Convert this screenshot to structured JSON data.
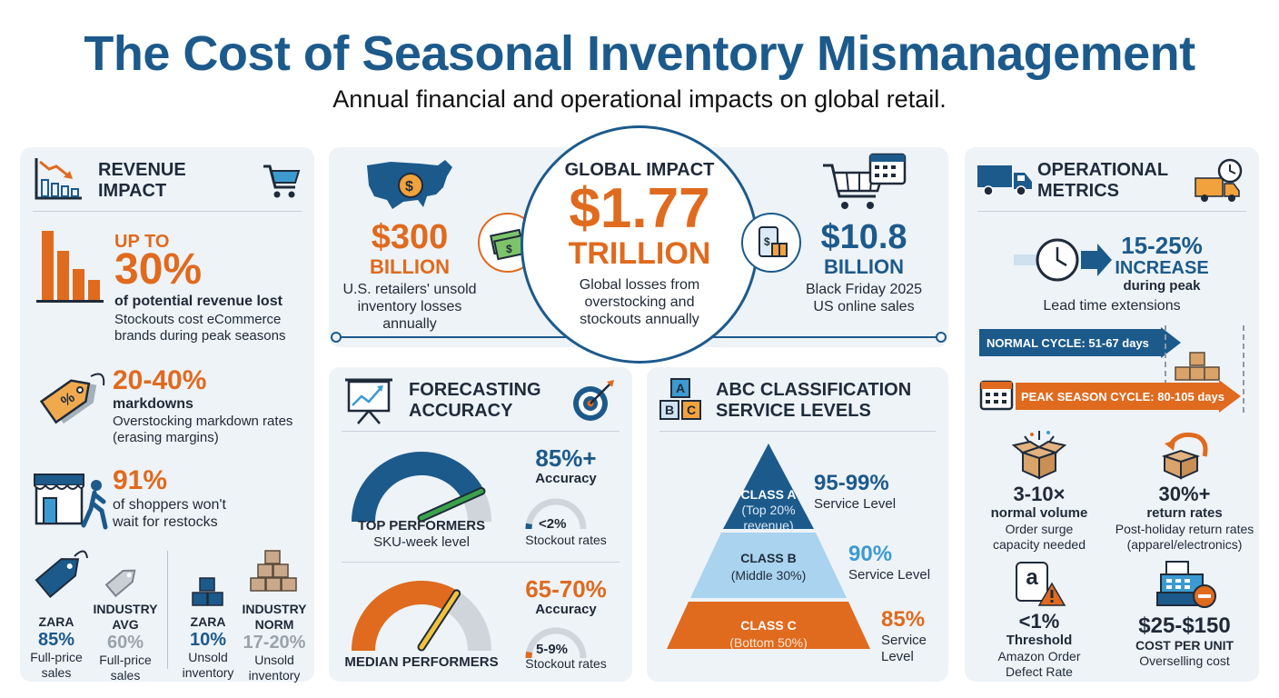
{
  "header": {
    "title": "The Cost of Seasonal Inventory Mismanagement",
    "subtitle": "Annual financial and operational impacts on global retail."
  },
  "revenue": {
    "heading_l1": "REVENUE",
    "heading_l2": "IMPACT",
    "stat1": {
      "pre": "UP TO",
      "value": "30%",
      "label": "of potential revenue lost",
      "desc_l1": "Stockouts cost eCommerce",
      "desc_l2": "brands during peak seasons"
    },
    "stat2": {
      "value": "20-40%",
      "label": "markdowns",
      "desc_l1": "Overstocking markdown rates",
      "desc_l2": "(erasing margins)"
    },
    "stat3": {
      "value": "91%",
      "desc_l1": "of shoppers won't",
      "desc_l2": "wait for restocks"
    },
    "compare": [
      {
        "name": "ZARA",
        "value": "85%",
        "desc_l1": "Full-price",
        "desc_l2": "sales"
      },
      {
        "name_l1": "INDUSTRY",
        "name_l2": "AVG",
        "value": "60%",
        "desc_l1": "Full-price",
        "desc_l2": "sales"
      },
      {
        "name": "ZARA",
        "value": "10%",
        "desc_l1": "Unsold",
        "desc_l2": "inventory"
      },
      {
        "name_l1": "INDUSTRY",
        "name_l2": "NORM",
        "value": "17-20%",
        "desc_l1": "Unsold",
        "desc_l2": "inventory"
      }
    ]
  },
  "global": {
    "us": {
      "value": "$300",
      "unit": "BILLION",
      "desc_l1": "U.S. retailers' unsold",
      "desc_l2": "inventory losses",
      "desc_l3": "annually"
    },
    "center": {
      "label": "GLOBAL IMPACT",
      "value": "$1.77",
      "unit": "TRILLION",
      "desc_l1": "Global losses from",
      "desc_l2": "overstocking and",
      "desc_l3": "stockouts annually"
    },
    "bf": {
      "value": "$10.8",
      "unit": "BILLION",
      "desc_l1": "Black Friday 2025",
      "desc_l2": "US online sales"
    }
  },
  "forecast": {
    "heading_l1": "FORECASTING",
    "heading_l2": "ACCURACY",
    "top": {
      "gauge_fraction": 0.85,
      "label": "TOP PERFORMERS",
      "sub": "SKU-week level",
      "accuracy_value": "85%+",
      "accuracy_label": "Accuracy",
      "stockout_value": "<2%",
      "stockout_label": "Stockout rates",
      "stockout_fraction": 0.02
    },
    "median": {
      "gauge_fraction": 0.675,
      "label": "MEDIAN PERFORMERS",
      "accuracy_value": "65-70%",
      "accuracy_label": "Accuracy",
      "stockout_value": "5-9%",
      "stockout_label": "Stockout rates",
      "stockout_fraction": 0.07
    }
  },
  "abc": {
    "heading_l1": "ABC CLASSIFICATION",
    "heading_l2": "SERVICE LEVELS",
    "icon_letters": [
      "A",
      "B",
      "C"
    ],
    "classes": [
      {
        "name": "CLASS A",
        "desc_l1": "(Top 20%",
        "desc_l2": "revenue)",
        "value": "95-99%",
        "label": "Service Level"
      },
      {
        "name": "CLASS B",
        "desc": "(Middle 30%)",
        "value": "90%",
        "label": "Service Level"
      },
      {
        "name": "CLASS C",
        "desc": "(Bottom 50%)",
        "value": "85%",
        "label_l1": "Service",
        "label_l2": "Level"
      }
    ]
  },
  "ops": {
    "heading_l1": "OPERATIONAL",
    "heading_l2": "METRICS",
    "lead": {
      "value": "15-25%",
      "unit": "INCREASE",
      "qual": "during peak",
      "desc": "Lead time extensions"
    },
    "normal_cycle": "NORMAL CYCLE: 51-67 days",
    "peak_cycle": "PEAK SEASON CYCLE: 80-105 days",
    "m1": {
      "value": "3-10×",
      "label": "normal volume",
      "desc_l1": "Order surge",
      "desc_l2": "capacity needed"
    },
    "m2": {
      "value": "30%+",
      "label": "return rates",
      "desc_l1": "Post-holiday return rates",
      "desc_l2": "(apparel/electronics)"
    },
    "m3": {
      "icon_letter": "a",
      "value": "<1%",
      "label": "Threshold",
      "desc_l1": "Amazon Order",
      "desc_l2": "Defect Rate"
    },
    "m4": {
      "value": "$25-$150",
      "label": "COST PER UNIT",
      "desc": "Overselling cost"
    }
  },
  "colors": {
    "navy": "#1c5a8c",
    "orange": "#e06a1e",
    "light_blue": "#3d9ad1",
    "gray": "#9aa3ab",
    "panel": "#eef3f7"
  }
}
